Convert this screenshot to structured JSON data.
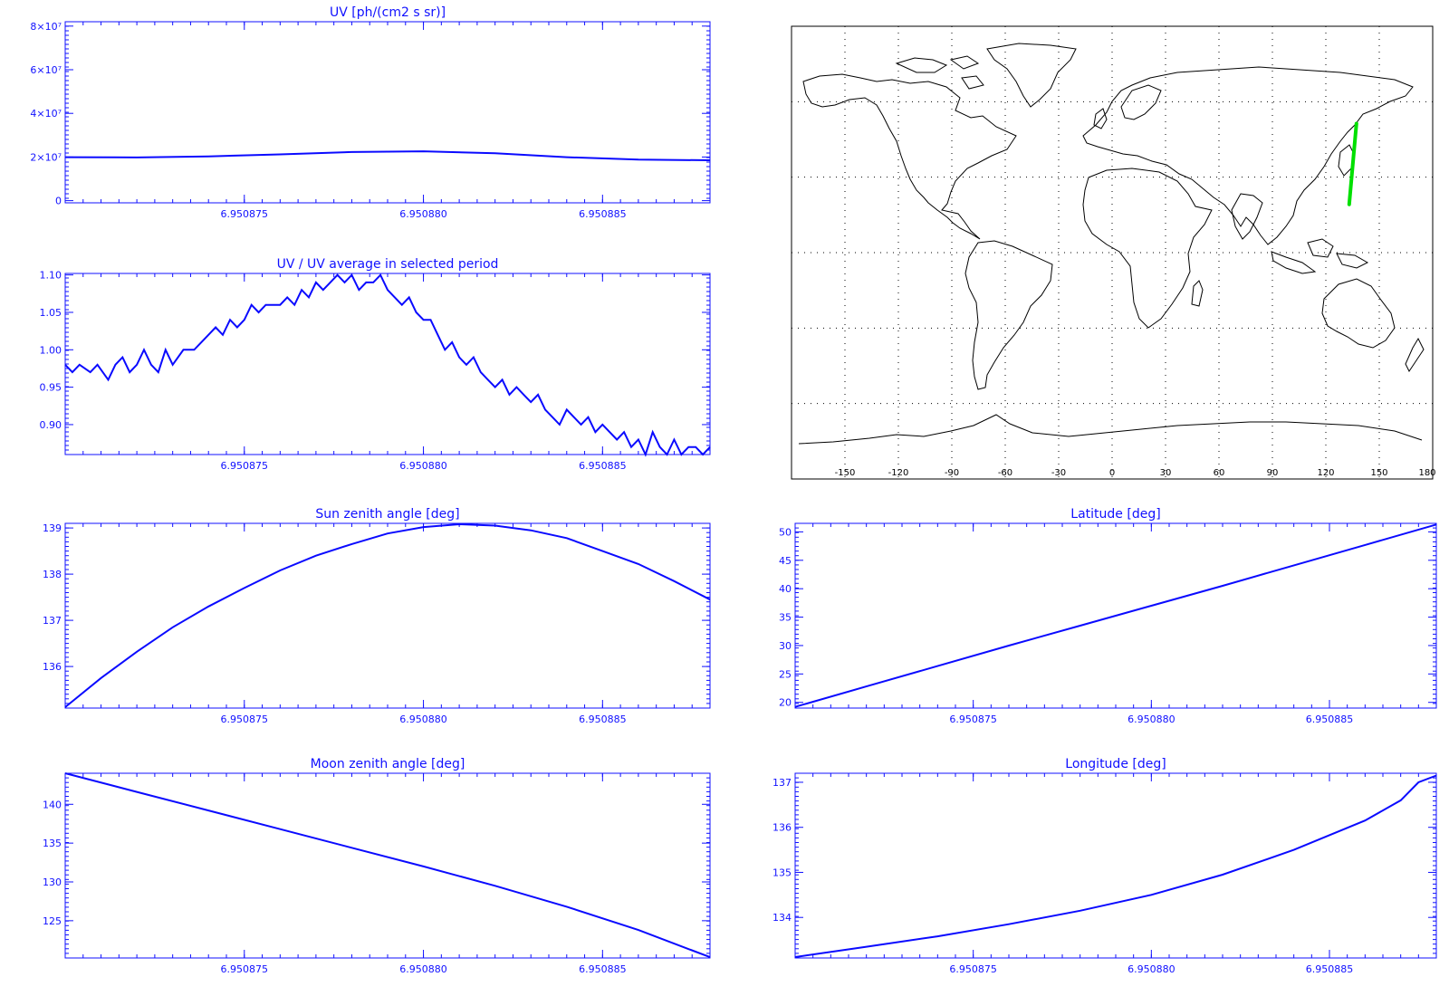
{
  "chart_data": [
    {
      "type": "line",
      "title": "UV [ph/(cm2 s sr)]",
      "x_ticks": [
        "6.950875",
        "6.950880",
        "6.950885"
      ],
      "x_tick_values": [
        6.950875,
        6.95088,
        6.950885
      ],
      "xlim": [
        6.95087,
        6.950888
      ],
      "y_ticks": [
        "8×10⁷",
        "6×10⁷",
        "4×10⁷",
        "2×10⁷",
        "0"
      ],
      "y_tick_values": [
        80000000,
        60000000,
        40000000,
        20000000,
        0
      ],
      "ylim": [
        -1000000,
        82000000
      ],
      "series": [
        {
          "x": [
            6.95087,
            6.950872,
            6.950874,
            6.950876,
            6.950878,
            6.95088,
            6.950882,
            6.950884,
            6.950886,
            6.950888
          ],
          "values": [
            19900000,
            19800000,
            20300000,
            21200000,
            22300000,
            22600000,
            21700000,
            19900000,
            18800000,
            18500000
          ]
        }
      ]
    },
    {
      "type": "line",
      "title": "UV / UV average in selected period",
      "x_ticks": [
        "6.950875",
        "6.950880",
        "6.950885"
      ],
      "x_tick_values": [
        6.950875,
        6.95088,
        6.950885
      ],
      "xlim": [
        6.95087,
        6.950888
      ],
      "y_ticks": [
        "1.10",
        "1.05",
        "1.00",
        "0.95",
        "0.90"
      ],
      "y_tick_values": [
        1.1,
        1.05,
        1.0,
        0.95,
        0.9
      ],
      "ylim": [
        0.86,
        1.102
      ],
      "series": [
        {
          "x": [
            6.95087,
            6.9508702,
            6.9508704,
            6.9508707,
            6.9508709,
            6.9508712,
            6.9508714,
            6.9508716,
            6.9508718,
            6.950872,
            6.9508722,
            6.9508724,
            6.9508726,
            6.9508728,
            6.950873,
            6.9508733,
            6.9508736,
            6.950874,
            6.9508742,
            6.9508744,
            6.9508746,
            6.9508748,
            6.950875,
            6.9508752,
            6.9508754,
            6.9508756,
            6.9508758,
            6.950876,
            6.9508762,
            6.9508764,
            6.9508766,
            6.9508768,
            6.950877,
            6.9508772,
            6.9508774,
            6.9508776,
            6.9508778,
            6.950878,
            6.9508782,
            6.9508784,
            6.9508786,
            6.9508788,
            6.950879,
            6.9508792,
            6.9508794,
            6.9508796,
            6.9508798,
            6.95088,
            6.9508802,
            6.9508804,
            6.9508806,
            6.9508808,
            6.950881,
            6.9508812,
            6.9508814,
            6.9508816,
            6.9508818,
            6.950882,
            6.9508822,
            6.9508824,
            6.9508826,
            6.9508828,
            6.950883,
            6.9508832,
            6.9508834,
            6.9508836,
            6.9508838,
            6.950884,
            6.9508842,
            6.9508844,
            6.9508846,
            6.9508848,
            6.950885,
            6.9508852,
            6.9508854,
            6.9508856,
            6.9508858,
            6.950886,
            6.9508862,
            6.9508864,
            6.9508866,
            6.9508868,
            6.950887,
            6.9508872,
            6.9508874,
            6.9508876,
            6.9508878,
            6.950888
          ],
          "values": [
            0.98,
            0.97,
            0.98,
            0.97,
            0.98,
            0.96,
            0.98,
            0.99,
            0.97,
            0.98,
            1.0,
            0.98,
            0.97,
            1.0,
            0.98,
            1.0,
            1.0,
            1.02,
            1.03,
            1.02,
            1.04,
            1.03,
            1.04,
            1.06,
            1.05,
            1.06,
            1.06,
            1.06,
            1.07,
            1.06,
            1.08,
            1.07,
            1.09,
            1.08,
            1.09,
            1.1,
            1.09,
            1.1,
            1.08,
            1.09,
            1.09,
            1.1,
            1.08,
            1.07,
            1.06,
            1.07,
            1.05,
            1.04,
            1.04,
            1.02,
            1.0,
            1.01,
            0.99,
            0.98,
            0.99,
            0.97,
            0.96,
            0.95,
            0.96,
            0.94,
            0.95,
            0.94,
            0.93,
            0.94,
            0.92,
            0.91,
            0.9,
            0.92,
            0.91,
            0.9,
            0.91,
            0.89,
            0.9,
            0.89,
            0.88,
            0.89,
            0.87,
            0.88,
            0.86,
            0.89,
            0.87,
            0.86,
            0.88,
            0.86,
            0.87,
            0.87,
            0.86,
            0.87
          ]
        }
      ]
    },
    {
      "type": "line",
      "title": "Sun zenith angle [deg]",
      "x_ticks": [
        "6.950875",
        "6.950880",
        "6.950885"
      ],
      "x_tick_values": [
        6.950875,
        6.95088,
        6.950885
      ],
      "xlim": [
        6.95087,
        6.950888
      ],
      "y_ticks": [
        "139",
        "138",
        "137",
        "136"
      ],
      "y_tick_values": [
        139,
        138,
        137,
        136
      ],
      "ylim": [
        135.1,
        139.1
      ],
      "series": [
        {
          "x": [
            6.95087,
            6.950871,
            6.950872,
            6.950873,
            6.950874,
            6.950875,
            6.950876,
            6.950877,
            6.950878,
            6.950879,
            6.95088,
            6.950881,
            6.950882,
            6.950883,
            6.950884,
            6.950885,
            6.950886,
            6.950887,
            6.950888
          ],
          "values": [
            135.12,
            135.75,
            136.32,
            136.85,
            137.3,
            137.7,
            138.08,
            138.4,
            138.65,
            138.88,
            139.02,
            139.08,
            139.05,
            138.95,
            138.78,
            138.5,
            138.22,
            137.85,
            137.45
          ]
        }
      ]
    },
    {
      "type": "line",
      "title": "Latitude [deg]",
      "x_ticks": [
        "6.950875",
        "6.950880",
        "6.950885"
      ],
      "x_tick_values": [
        6.950875,
        6.95088,
        6.950885
      ],
      "xlim": [
        6.95087,
        6.950888
      ],
      "y_ticks": [
        "50",
        "45",
        "40",
        "35",
        "30",
        "25",
        "20"
      ],
      "y_tick_values": [
        50,
        45,
        40,
        35,
        30,
        25,
        20
      ],
      "ylim": [
        19,
        51.5
      ],
      "series": [
        {
          "x": [
            6.95087,
            6.950872,
            6.950874,
            6.950876,
            6.950878,
            6.95088,
            6.950882,
            6.950884,
            6.950886,
            6.950888
          ],
          "values": [
            19.2,
            22.8,
            26.4,
            30.0,
            33.5,
            37.0,
            40.5,
            44.1,
            47.7,
            51.3
          ]
        }
      ]
    },
    {
      "type": "line",
      "title": "Moon zenith angle [deg]",
      "x_ticks": [
        "6.950875",
        "6.950880",
        "6.950885"
      ],
      "x_tick_values": [
        6.950875,
        6.95088,
        6.950885
      ],
      "xlim": [
        6.95087,
        6.950888
      ],
      "y_ticks": [
        "140",
        "135",
        "130",
        "125"
      ],
      "y_tick_values": [
        140,
        135,
        130,
        125
      ],
      "ylim": [
        120.2,
        144
      ],
      "series": [
        {
          "x": [
            6.95087,
            6.950872,
            6.950874,
            6.950876,
            6.950878,
            6.95088,
            6.950882,
            6.950884,
            6.950886,
            6.950888
          ],
          "values": [
            144.0,
            141.6,
            139.2,
            136.8,
            134.4,
            132.0,
            129.5,
            126.8,
            123.8,
            120.3
          ]
        }
      ]
    },
    {
      "type": "line",
      "title": "Longitude [deg]",
      "x_ticks": [
        "6.950875",
        "6.950880",
        "6.950885"
      ],
      "x_tick_values": [
        6.950875,
        6.95088,
        6.950885
      ],
      "xlim": [
        6.95087,
        6.950888
      ],
      "y_ticks": [
        "137",
        "136",
        "135",
        "134"
      ],
      "y_tick_values": [
        137,
        136,
        135,
        134
      ],
      "ylim": [
        133.1,
        137.2
      ],
      "series": [
        {
          "x": [
            6.95087,
            6.950872,
            6.950874,
            6.950876,
            6.950878,
            6.95088,
            6.950882,
            6.950884,
            6.950886,
            6.950887,
            6.9508875,
            6.950888
          ],
          "values": [
            133.12,
            133.35,
            133.58,
            133.85,
            134.15,
            134.5,
            134.95,
            135.5,
            136.15,
            136.6,
            137.0,
            137.15
          ]
        }
      ]
    }
  ],
  "map": {
    "type": "map",
    "x_ticks": [
      "-150",
      "-120",
      "-90",
      "-60",
      "-30",
      "0",
      "30",
      "60",
      "90",
      "120",
      "150",
      "180"
    ],
    "x_tick_values": [
      -150,
      -120,
      -90,
      -60,
      -30,
      0,
      30,
      60,
      90,
      120,
      150,
      180
    ],
    "xlim": [
      -180,
      180
    ],
    "ylim": [
      -90,
      90
    ],
    "grid": true,
    "track": {
      "lon": [
        133.1,
        137.2
      ],
      "lat": [
        19.2,
        51.3
      ],
      "color": "#00e000"
    }
  }
}
